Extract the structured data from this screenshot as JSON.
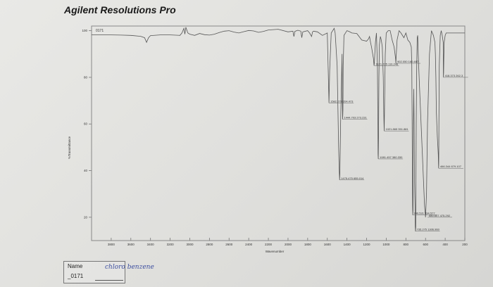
{
  "header": {
    "title": "Agilent Resolutions Pro"
  },
  "sample_box": {
    "name_label": "Name",
    "name_value": "chloro benzene",
    "sample_id": "_0171"
  },
  "chart_data": {
    "type": "line",
    "title": "0171",
    "xlabel": "Wavenumber",
    "ylabel": "%Transmittance",
    "xlim": [
      4000,
      200
    ],
    "ylim": [
      10,
      102
    ],
    "x_ticks": [
      3800,
      3600,
      3400,
      3200,
      3000,
      2800,
      2600,
      2400,
      2200,
      2000,
      1800,
      1600,
      1400,
      1200,
      1000,
      800,
      600,
      400,
      200
    ],
    "y_ticks": [
      100,
      80,
      60,
      40,
      20
    ],
    "grid": false,
    "line_color": "#555555",
    "series": [
      {
        "x": [
          4000,
          3900,
          3800,
          3700,
          3600,
          3500,
          3460,
          3440,
          3420,
          3400,
          3300,
          3200,
          3100,
          3080,
          3060,
          3050,
          3040,
          3020,
          3000,
          2950,
          2900,
          2850,
          2800,
          2750,
          2700,
          2650,
          2600,
          2550,
          2500,
          2450,
          2400,
          2350,
          2300,
          2250,
          2200,
          2100,
          2000,
          1950,
          1940,
          1935,
          1930,
          1900,
          1870,
          1860,
          1850,
          1800,
          1780,
          1760,
          1750,
          1740,
          1700,
          1650,
          1600,
          1590,
          1583,
          1576,
          1560,
          1530,
          1520,
          1500,
          1485,
          1478,
          1475,
          1472,
          1465,
          1450,
          1447,
          1444,
          1441,
          1438,
          1430,
          1400,
          1380,
          1350,
          1300,
          1250,
          1200,
          1180,
          1170,
          1160,
          1150,
          1130,
          1124,
          1121,
          1118,
          1110,
          1100,
          1090,
          1085,
          1083,
          1081,
          1078,
          1075,
          1070,
          1060,
          1050,
          1040,
          1030,
          1024,
          1021,
          1018,
          1010,
          1000,
          980,
          960,
          950,
          940,
          920,
          905,
          902,
          899,
          890,
          870,
          850,
          820,
          800,
          780,
          760,
          745,
          740,
          736,
          734,
          732,
          730,
          728,
          726,
          724,
          720,
          716,
          714,
          712,
          710,
          707,
          705,
          702,
          700,
          698,
          695,
          690,
          685,
          680,
          675,
          660,
          640,
          620,
          610,
          600,
          590,
          580,
          560,
          540,
          520,
          505,
          500,
          495,
          490,
          480,
          470,
          468,
          467,
          466,
          465,
          464,
          460,
          450,
          440,
          430,
          420,
          419,
          418,
          416,
          414,
          410,
          400,
          390,
          380,
          370,
          360,
          350,
          340,
          330,
          320,
          310,
          300,
          290,
          280,
          270,
          260,
          250,
          240,
          230,
          220,
          210,
          200
        ],
        "y": [
          98.2,
          98.2,
          98.2,
          98.1,
          98.0,
          97.6,
          97.0,
          95.0,
          97.0,
          97.9,
          98.2,
          98.2,
          98.0,
          99.0,
          101.0,
          98.5,
          101.5,
          99.0,
          98.5,
          98.0,
          98.8,
          98.3,
          98.1,
          98.5,
          99.2,
          99.8,
          100.0,
          99.4,
          99.0,
          99.6,
          100.1,
          99.9,
          99.3,
          99.7,
          100.3,
          100.6,
          99.5,
          99.8,
          97.5,
          98.5,
          99.7,
          100.2,
          99.8,
          97.0,
          99.5,
          100.0,
          99.0,
          97.5,
          99.5,
          99.8,
          99.5,
          98.0,
          99.0,
          82.0,
          69.0,
          83.0,
          99.0,
          101.0,
          99.0,
          85.0,
          50.0,
          39.0,
          36.0,
          39.0,
          60.0,
          90.0,
          70.0,
          62.0,
          66.0,
          85.0,
          98.0,
          100.0,
          99.7,
          99.0,
          98.8,
          96.0,
          95.5,
          96.5,
          97.5,
          95.0,
          93.0,
          88.0,
          85.0,
          86.0,
          89.0,
          95.0,
          99.0,
          85.0,
          60.0,
          47.0,
          45.0,
          55.0,
          80.0,
          94.0,
          97.5,
          96.0,
          93.0,
          80.0,
          62.0,
          57.0,
          65.0,
          90.0,
          99.0,
          100.0,
          100.0,
          98.0,
          96.0,
          93.0,
          88.0,
          86.0,
          89.0,
          96.0,
          100.0,
          99.0,
          97.0,
          99.0,
          96.0,
          95.0,
          93.0,
          85.0,
          60.0,
          40.0,
          25.0,
          21.0,
          23.0,
          40.0,
          60.0,
          75.0,
          60.0,
          45.0,
          35.0,
          30.0,
          25.0,
          16.0,
          14.0,
          16.0,
          30.0,
          60.0,
          85.0,
          97.0,
          98.0,
          90.0,
          75.0,
          55.0,
          35.0,
          25.0,
          20.0,
          30.0,
          60.0,
          90.0,
          100.0,
          98.0,
          95.0,
          90.0,
          80.0,
          65.0,
          55.0,
          47.0,
          43.0,
          41.0,
          42.0,
          45.0,
          60.0,
          85.0,
          98.0,
          100.0,
          98.0,
          95.0,
          85.0,
          80.0,
          82.0,
          88.0,
          95.0,
          98.0,
          99.0,
          99.0,
          99.0,
          99.0,
          99.0,
          99.0,
          99.0,
          99.0,
          99.0,
          99.0,
          99.0,
          99.0,
          99.0,
          99.0,
          99.0,
          99.0,
          99.0,
          99.0,
          99.0,
          99.0
        ]
      }
    ],
    "peak_labels": [
      {
        "text": "1121.725  110.248",
        "x": 1121,
        "y": 85
      },
      {
        "text": "902.050  160.487",
        "x": 902,
        "y": 86
      },
      {
        "text": "418.373  262.3",
        "x": 418,
        "y": 80
      },
      {
        "text": "1582.273  204.473",
        "x": 1583,
        "y": 69
      },
      {
        "text": "1444.703  273.231",
        "x": 1444,
        "y": 62
      },
      {
        "text": "1021.865  351.881",
        "x": 1021,
        "y": 57
      },
      {
        "text": "1081.457  380.330",
        "x": 1081,
        "y": 45
      },
      {
        "text": "1475.475  655.014",
        "x": 1475,
        "y": 36
      },
      {
        "text": "466.344  679.107",
        "x": 466,
        "y": 41
      },
      {
        "text": "740.531  334.577",
        "x": 734,
        "y": 21
      },
      {
        "text": "580.607  475.292",
        "x": 580,
        "y": 20
      },
      {
        "text": "735.275  1306.960",
        "x": 705,
        "y": 14
      }
    ]
  }
}
